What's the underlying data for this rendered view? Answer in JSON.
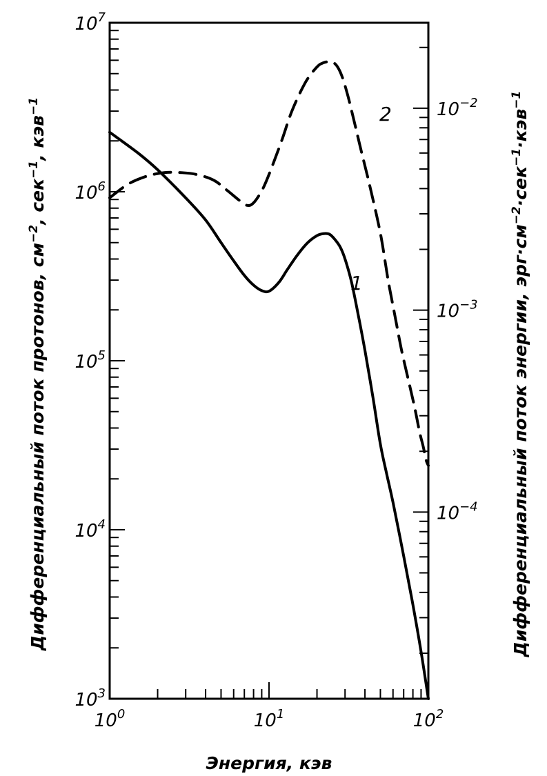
{
  "chart_data": {
    "type": "line",
    "xlabel": "Энергия, кэв",
    "ylabel_left_parts": [
      "Дифференциальный поток протонов, см",
      "−2",
      ", сек",
      "−1",
      ", кэв",
      "−1"
    ],
    "ylabel_right_parts": [
      "Дифференциальный поток энергии, эрг·см",
      "−2",
      "·сек",
      "−1",
      "·кэв",
      "−1"
    ],
    "x_scale": "log",
    "xlim": [
      1,
      100
    ],
    "x_ticks": [
      {
        "value": 1,
        "base": "10",
        "exp": "0"
      },
      {
        "value": 10,
        "base": "10",
        "exp": "1"
      },
      {
        "value": 100,
        "base": "10",
        "exp": "2"
      }
    ],
    "y_left_scale": "log",
    "ylim_left": [
      1000,
      10000000
    ],
    "y_left_ticks": [
      {
        "value": 1000,
        "base": "10",
        "exp": "3"
      },
      {
        "value": 10000,
        "base": "10",
        "exp": "4"
      },
      {
        "value": 100000,
        "base": "10",
        "exp": "5"
      },
      {
        "value": 1000000,
        "base": "10",
        "exp": "6"
      },
      {
        "value": 10000000,
        "base": "10",
        "exp": "7"
      }
    ],
    "y_right_scale": "log",
    "ylim_right": [
      1.19e-05,
      0.0265
    ],
    "y_right_ticks": [
      {
        "value": 0.0001,
        "base": "10",
        "exp": "−4"
      },
      {
        "value": 0.001,
        "base": "10",
        "exp": "−3"
      },
      {
        "value": 0.01,
        "base": "10",
        "exp": "−2"
      }
    ],
    "grid": false,
    "series": [
      {
        "label": "1",
        "axis": "left",
        "style": "solid",
        "points": [
          [
            1,
            2250000
          ],
          [
            1.5,
            1700000
          ],
          [
            2,
            1350000
          ],
          [
            3,
            920000
          ],
          [
            4,
            680000
          ],
          [
            5,
            500000
          ],
          [
            6,
            390000
          ],
          [
            7,
            320000
          ],
          [
            8,
            280000
          ],
          [
            9,
            260000
          ],
          [
            10,
            258000
          ],
          [
            11.5,
            290000
          ],
          [
            13,
            345000
          ],
          [
            15,
            420000
          ],
          [
            17.5,
            500000
          ],
          [
            20,
            550000
          ],
          [
            22,
            565000
          ],
          [
            24,
            560000
          ],
          [
            26,
            520000
          ],
          [
            28,
            470000
          ],
          [
            30,
            400000
          ],
          [
            33,
            290000
          ],
          [
            37,
            170000
          ],
          [
            40,
            115000
          ],
          [
            45,
            60000
          ],
          [
            50,
            32000
          ],
          [
            55,
            21000
          ],
          [
            60,
            14500
          ],
          [
            70,
            7000
          ],
          [
            80,
            3600
          ],
          [
            90,
            1900
          ],
          [
            100,
            1000
          ]
        ]
      },
      {
        "label": "2",
        "axis": "right",
        "style": "dashed",
        "points": [
          [
            1,
            0.0036
          ],
          [
            1.3,
            0.0042
          ],
          [
            1.7,
            0.0046
          ],
          [
            2.2,
            0.0048
          ],
          [
            2.8,
            0.0048
          ],
          [
            3.5,
            0.0047
          ],
          [
            4.5,
            0.0044
          ],
          [
            5.5,
            0.0039
          ],
          [
            6.5,
            0.0035
          ],
          [
            7.3,
            0.0033
          ],
          [
            8,
            0.0034
          ],
          [
            9,
            0.0039
          ],
          [
            10,
            0.0047
          ],
          [
            12,
            0.0069
          ],
          [
            14,
            0.0098
          ],
          [
            17,
            0.0135
          ],
          [
            20,
            0.016
          ],
          [
            22,
            0.0168
          ],
          [
            24.5,
            0.017
          ],
          [
            26.5,
            0.0163
          ],
          [
            28.5,
            0.0146
          ],
          [
            31,
            0.0118
          ],
          [
            34,
            0.0088
          ],
          [
            38,
            0.0061
          ],
          [
            43,
            0.0041
          ],
          [
            50,
            0.0024
          ],
          [
            56,
            0.0014
          ],
          [
            62,
            0.00092
          ],
          [
            68,
            0.00063
          ],
          [
            75,
            0.00045
          ],
          [
            82,
            0.00033
          ],
          [
            88,
            0.00025
          ],
          [
            93,
            0.00021
          ],
          [
            97,
            0.00018
          ],
          [
            100,
            0.00017
          ]
        ]
      }
    ]
  }
}
